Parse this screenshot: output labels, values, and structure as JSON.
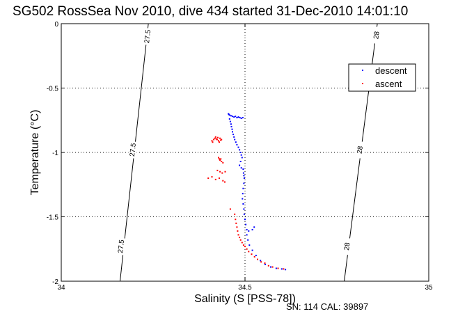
{
  "chart_data": {
    "type": "scatter",
    "title": "SG502 RossSea Nov 2010, dive 434 started 31-Dec-2010 14:01:10",
    "xlabel": "Salinity (S [PSS-78])",
    "ylabel": "Temperature (°C)",
    "xlim": [
      34,
      35
    ],
    "ylim": [
      -2,
      0
    ],
    "x_ticks": [
      34,
      34.5,
      35
    ],
    "x_tick_labels": [
      "34",
      "34.5",
      "35"
    ],
    "y_ticks": [
      0,
      -0.5,
      -1,
      -1.5,
      -2
    ],
    "y_tick_labels": [
      "0",
      "-0.5",
      "-1",
      "-1.5",
      "-2"
    ],
    "grid": true,
    "legend_position": "top-right",
    "colors": {
      "descent": "#0000ff",
      "ascent": "#ff0000",
      "contour": "#000000"
    },
    "contours": [
      {
        "label": "27.5",
        "points": [
          [
            34.237,
            0
          ],
          [
            34.16,
            -2
          ]
        ],
        "label_positions": [
          [
            34.235,
            -0.1
          ],
          [
            34.195,
            -0.98
          ],
          [
            34.163,
            -1.73
          ]
        ]
      },
      {
        "label": "28",
        "points": [
          [
            34.86,
            0
          ],
          [
            34.77,
            -2
          ]
        ],
        "label_positions": [
          [
            34.858,
            -0.09
          ],
          [
            34.813,
            -0.98
          ],
          [
            34.778,
            -1.73
          ]
        ]
      }
    ],
    "series": [
      {
        "name": "descent",
        "points": [
          [
            34.455,
            -0.7
          ],
          [
            34.456,
            -0.705
          ],
          [
            34.458,
            -0.71
          ],
          [
            34.462,
            -0.715
          ],
          [
            34.466,
            -0.72
          ],
          [
            34.47,
            -0.725
          ],
          [
            34.474,
            -0.72
          ],
          [
            34.478,
            -0.73
          ],
          [
            34.482,
            -0.725
          ],
          [
            34.486,
            -0.73
          ],
          [
            34.49,
            -0.735
          ],
          [
            34.494,
            -0.73
          ],
          [
            34.458,
            -0.74
          ],
          [
            34.46,
            -0.76
          ],
          [
            34.462,
            -0.78
          ],
          [
            34.463,
            -0.8
          ],
          [
            34.465,
            -0.82
          ],
          [
            34.466,
            -0.84
          ],
          [
            34.468,
            -0.86
          ],
          [
            34.47,
            -0.88
          ],
          [
            34.472,
            -0.9
          ],
          [
            34.475,
            -0.92
          ],
          [
            34.478,
            -0.94
          ],
          [
            34.482,
            -0.96
          ],
          [
            34.485,
            -0.98
          ],
          [
            34.488,
            -1.0
          ],
          [
            34.49,
            -1.02
          ],
          [
            34.492,
            -1.04
          ],
          [
            34.488,
            -1.07
          ],
          [
            34.485,
            -1.1
          ],
          [
            34.49,
            -1.12
          ],
          [
            34.495,
            -1.13
          ],
          [
            34.496,
            -1.16
          ],
          [
            34.497,
            -1.18
          ],
          [
            34.498,
            -1.2
          ],
          [
            34.497,
            -1.24
          ],
          [
            34.495,
            -1.28
          ],
          [
            34.494,
            -1.32
          ],
          [
            34.493,
            -1.36
          ],
          [
            34.495,
            -1.4
          ],
          [
            34.497,
            -1.44
          ],
          [
            34.498,
            -1.48
          ],
          [
            34.5,
            -1.52
          ],
          [
            34.502,
            -1.56
          ],
          [
            34.505,
            -1.6
          ],
          [
            34.51,
            -1.61
          ],
          [
            34.52,
            -1.6
          ],
          [
            34.525,
            -1.58
          ],
          [
            34.505,
            -1.64
          ],
          [
            34.508,
            -1.68
          ],
          [
            34.512,
            -1.72
          ],
          [
            34.52,
            -1.76
          ],
          [
            34.53,
            -1.8
          ],
          [
            34.542,
            -1.84
          ],
          [
            34.555,
            -1.87
          ],
          [
            34.57,
            -1.89
          ],
          [
            34.585,
            -1.9
          ],
          [
            34.6,
            -1.905
          ],
          [
            34.61,
            -1.91
          ]
        ]
      },
      {
        "name": "ascent",
        "points": [
          [
            34.41,
            -0.91
          ],
          [
            34.412,
            -0.92
          ],
          [
            34.415,
            -0.9
          ],
          [
            34.418,
            -0.89
          ],
          [
            34.42,
            -0.88
          ],
          [
            34.422,
            -0.895
          ],
          [
            34.424,
            -0.9
          ],
          [
            34.426,
            -0.885
          ],
          [
            34.428,
            -0.91
          ],
          [
            34.43,
            -0.92
          ],
          [
            34.432,
            -0.89
          ],
          [
            34.434,
            -0.905
          ],
          [
            34.436,
            -0.9
          ],
          [
            34.428,
            -1.04
          ],
          [
            34.43,
            -1.05
          ],
          [
            34.432,
            -1.06
          ],
          [
            34.434,
            -1.05
          ],
          [
            34.436,
            -1.07
          ],
          [
            34.44,
            -1.08
          ],
          [
            34.425,
            -1.14
          ],
          [
            34.432,
            -1.15
          ],
          [
            34.438,
            -1.16
          ],
          [
            34.446,
            -1.15
          ],
          [
            34.4,
            -1.2
          ],
          [
            34.41,
            -1.19
          ],
          [
            34.42,
            -1.21
          ],
          [
            34.43,
            -1.2
          ],
          [
            34.44,
            -1.22
          ],
          [
            34.445,
            -1.23
          ],
          [
            34.46,
            -1.44
          ],
          [
            34.472,
            -1.48
          ],
          [
            34.474,
            -1.52
          ],
          [
            34.476,
            -1.55
          ],
          [
            34.478,
            -1.58
          ],
          [
            34.48,
            -1.61
          ],
          [
            34.482,
            -1.64
          ],
          [
            34.485,
            -1.66
          ],
          [
            34.488,
            -1.68
          ],
          [
            34.492,
            -1.7
          ],
          [
            34.496,
            -1.72
          ],
          [
            34.5,
            -1.73
          ],
          [
            34.505,
            -1.75
          ],
          [
            34.51,
            -1.77
          ],
          [
            34.518,
            -1.79
          ],
          [
            34.526,
            -1.81
          ],
          [
            34.534,
            -1.83
          ],
          [
            34.544,
            -1.85
          ],
          [
            34.554,
            -1.86
          ],
          [
            34.564,
            -1.88
          ],
          [
            34.575,
            -1.89
          ],
          [
            34.59,
            -1.9
          ],
          [
            34.605,
            -1.905
          ]
        ]
      }
    ]
  },
  "footer": {
    "text": "SN: 114  CAL: 39897"
  }
}
